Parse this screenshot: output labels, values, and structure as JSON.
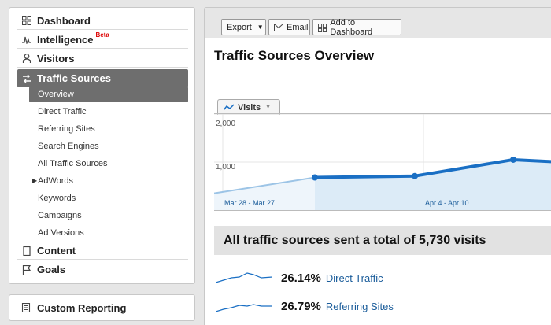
{
  "sidebar": {
    "items": [
      {
        "label": "Dashboard",
        "icon": "dashboard-grid-icon"
      },
      {
        "label": "Intelligence",
        "badge": "Beta",
        "icon": "intelligence-chart-icon"
      },
      {
        "label": "Visitors",
        "icon": "visitor-person-icon"
      },
      {
        "label": "Traffic Sources",
        "icon": "traffic-arrows-icon",
        "active": true
      },
      {
        "label": "Content",
        "icon": "content-page-icon"
      },
      {
        "label": "Goals",
        "icon": "goals-flag-icon"
      }
    ],
    "traffic_subitems": [
      {
        "label": "Overview",
        "active": true
      },
      {
        "label": "Direct Traffic"
      },
      {
        "label": "Referring Sites"
      },
      {
        "label": "Search Engines"
      },
      {
        "label": "All Traffic Sources"
      },
      {
        "label": "AdWords",
        "expandable": true
      },
      {
        "label": "Keywords"
      },
      {
        "label": "Campaigns"
      },
      {
        "label": "Ad Versions"
      }
    ],
    "custom_reporting": {
      "label": "Custom Reporting",
      "icon": "report-document-icon"
    }
  },
  "toolbar": {
    "export_label": "Export",
    "email_label": "Email",
    "add_dashboard_label": "Add to Dashboard"
  },
  "main": {
    "title": "Traffic Sources Overview",
    "metric_selector": "Visits",
    "summary_text": "All traffic sources sent a total of 5,730 visits"
  },
  "chart_data": {
    "type": "line",
    "metric": "Visits",
    "y_ticks": [
      "2,000",
      "1,000"
    ],
    "x_ticks": [
      "Mar 28 - Mar 27",
      "Apr 4 - Apr 10"
    ],
    "series": [
      {
        "name": "Visits",
        "values": [
          350,
          680,
          710,
          1050,
          1010
        ]
      }
    ],
    "ylim": [
      0,
      2000
    ],
    "grid": true
  },
  "sources": [
    {
      "percent": "26.14%",
      "label": "Direct Traffic"
    },
    {
      "percent": "26.79%",
      "label": "Referring Sites"
    }
  ],
  "colors": {
    "accent": "#1a6fc4",
    "link": "#1a5c9a",
    "active_nav": "#6e6e6e"
  }
}
